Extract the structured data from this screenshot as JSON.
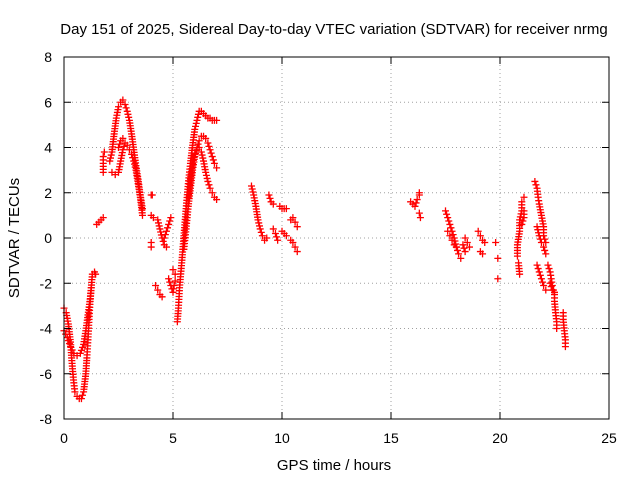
{
  "chart_data": {
    "type": "scatter",
    "title": "Day 151 of 2025, Sidereal Day-to-day VTEC variation (SDTVAR) for receiver nrmg",
    "xlabel": "GPS time / hours",
    "ylabel": "SDTVAR / TECUs",
    "xlim": [
      0,
      25
    ],
    "ylim": [
      -8,
      8
    ],
    "xticks": [
      0,
      5,
      10,
      15,
      20,
      25
    ],
    "yticks": [
      -8,
      -6,
      -4,
      -2,
      0,
      2,
      4,
      6,
      8
    ],
    "grid": true,
    "marker": "+",
    "series": [
      {
        "name": "SDTVAR",
        "color": "#ff0000",
        "segments": [
          [
            [
              0.0,
              -3.1
            ],
            [
              0.1,
              -3.3
            ],
            [
              0.2,
              -3.8
            ],
            [
              0.3,
              -4.6
            ],
            [
              0.35,
              -5.3
            ],
            [
              0.4,
              -5.9
            ],
            [
              0.45,
              -6.4
            ],
            [
              0.5,
              -6.8
            ],
            [
              0.6,
              -7.0
            ],
            [
              0.7,
              -7.1
            ],
            [
              0.8,
              -7.1
            ],
            [
              0.9,
              -6.8
            ],
            [
              1.0,
              -6.0
            ],
            [
              1.05,
              -5.3
            ],
            [
              1.1,
              -4.5
            ],
            [
              1.15,
              -3.6
            ],
            [
              1.2,
              -2.8
            ],
            [
              1.25,
              -2.2
            ],
            [
              1.3,
              -1.6
            ]
          ],
          [
            [
              0.0,
              -4.1
            ],
            [
              0.15,
              -4.4
            ],
            [
              0.3,
              -4.8
            ],
            [
              0.45,
              -5.1
            ],
            [
              0.6,
              -5.2
            ],
            [
              0.75,
              -5.1
            ],
            [
              0.9,
              -4.7
            ],
            [
              1.0,
              -4.1
            ],
            [
              1.1,
              -3.4
            ],
            [
              1.2,
              -2.7
            ],
            [
              1.25,
              -2.2
            ]
          ],
          [
            [
              1.4,
              -1.5
            ],
            [
              1.45,
              -1.6
            ]
          ],
          [
            [
              1.5,
              0.6
            ],
            [
              1.6,
              0.7
            ],
            [
              1.7,
              0.8
            ],
            [
              1.8,
              0.9
            ]
          ],
          [
            [
              1.8,
              2.9
            ],
            [
              1.8,
              3.3
            ],
            [
              1.8,
              3.6
            ],
            [
              1.85,
              3.8
            ]
          ],
          [
            [
              2.1,
              3.4
            ],
            [
              2.2,
              3.8
            ],
            [
              2.3,
              4.6
            ],
            [
              2.4,
              5.3
            ],
            [
              2.5,
              5.8
            ],
            [
              2.6,
              6.0
            ],
            [
              2.7,
              6.1
            ],
            [
              2.8,
              5.9
            ],
            [
              2.9,
              5.6
            ],
            [
              3.0,
              5.2
            ],
            [
              3.1,
              4.6
            ],
            [
              3.2,
              3.9
            ],
            [
              3.3,
              3.2
            ],
            [
              3.4,
              2.6
            ],
            [
              3.5,
              1.9
            ],
            [
              3.6,
              1.3
            ]
          ],
          [
            [
              2.2,
              2.9
            ],
            [
              2.35,
              2.8
            ],
            [
              2.5,
              2.9
            ],
            [
              2.6,
              3.4
            ],
            [
              2.7,
              3.9
            ],
            [
              2.8,
              4.2
            ],
            [
              2.9,
              4.1
            ],
            [
              3.0,
              3.9
            ],
            [
              3.1,
              3.7
            ],
            [
              3.2,
              3.4
            ],
            [
              3.3,
              3.0
            ],
            [
              3.4,
              2.4
            ],
            [
              3.5,
              1.8
            ],
            [
              3.6,
              1.0
            ]
          ],
          [
            [
              2.5,
              4.0
            ],
            [
              2.6,
              4.3
            ],
            [
              2.7,
              4.4
            ]
          ],
          [
            [
              4.0,
              1.9
            ],
            [
              4.05,
              1.9
            ]
          ],
          [
            [
              4.0,
              1.0
            ],
            [
              4.1,
              0.9
            ]
          ],
          [
            [
              4.3,
              0.8
            ],
            [
              4.4,
              0.4
            ],
            [
              4.5,
              0.0
            ],
            [
              4.6,
              -0.3
            ],
            [
              4.7,
              -0.4
            ]
          ],
          [
            [
              4.2,
              -2.1
            ],
            [
              4.3,
              -2.3
            ],
            [
              4.4,
              -2.5
            ],
            [
              4.5,
              -2.6
            ]
          ],
          [
            [
              4.8,
              -1.8
            ],
            [
              4.9,
              -2.1
            ],
            [
              5.0,
              -2.4
            ],
            [
              5.05,
              -2.1
            ],
            [
              5.1,
              -1.9
            ]
          ],
          [
            [
              4.6,
              0.0
            ],
            [
              4.7,
              0.3
            ],
            [
              4.8,
              0.6
            ],
            [
              4.9,
              0.9
            ]
          ],
          [
            [
              4.0,
              -0.2
            ],
            [
              4.0,
              -0.4
            ]
          ],
          [
            [
              5.0,
              -1.4
            ],
            [
              5.1,
              -1.6
            ]
          ],
          [
            [
              5.2,
              -3.7
            ],
            [
              5.25,
              -3.1
            ],
            [
              5.3,
              -2.2
            ],
            [
              5.4,
              -1.1
            ],
            [
              5.5,
              0.1
            ],
            [
              5.6,
              1.3
            ],
            [
              5.7,
              2.4
            ],
            [
              5.8,
              3.3
            ],
            [
              5.9,
              4.1
            ],
            [
              6.0,
              4.8
            ],
            [
              6.1,
              5.2
            ],
            [
              6.2,
              5.6
            ],
            [
              6.3,
              5.6
            ],
            [
              6.4,
              5.5
            ],
            [
              6.5,
              5.4
            ],
            [
              6.6,
              5.3
            ],
            [
              6.7,
              5.3
            ],
            [
              6.8,
              5.2
            ],
            [
              6.9,
              5.2
            ],
            [
              7.0,
              5.2
            ]
          ],
          [
            [
              5.5,
              -0.5
            ],
            [
              5.6,
              0.4
            ],
            [
              5.7,
              1.4
            ],
            [
              5.8,
              2.2
            ],
            [
              5.9,
              3.0
            ],
            [
              6.0,
              3.6
            ],
            [
              6.1,
              4.0
            ],
            [
              6.2,
              4.3
            ],
            [
              6.3,
              4.5
            ],
            [
              6.4,
              4.5
            ],
            [
              6.5,
              4.4
            ],
            [
              6.6,
              4.2
            ],
            [
              6.7,
              3.9
            ],
            [
              6.8,
              3.6
            ],
            [
              6.9,
              3.3
            ],
            [
              7.0,
              3.1
            ]
          ],
          [
            [
              5.7,
              1.8
            ],
            [
              5.8,
              2.6
            ],
            [
              5.9,
              3.3
            ],
            [
              6.0,
              3.7
            ],
            [
              6.1,
              3.9
            ],
            [
              6.2,
              4.0
            ],
            [
              6.3,
              3.8
            ],
            [
              6.4,
              3.4
            ],
            [
              6.5,
              2.9
            ],
            [
              6.6,
              2.5
            ],
            [
              6.7,
              2.2
            ],
            [
              6.8,
              2.0
            ],
            [
              6.9,
              1.8
            ],
            [
              7.0,
              1.7
            ]
          ],
          [
            [
              8.6,
              2.3
            ],
            [
              8.7,
              1.9
            ],
            [
              8.8,
              1.4
            ],
            [
              8.9,
              0.8
            ],
            [
              9.0,
              0.4
            ],
            [
              9.1,
              0.1
            ],
            [
              9.2,
              -0.1
            ],
            [
              9.3,
              0.0
            ]
          ],
          [
            [
              9.4,
              1.9
            ],
            [
              9.5,
              1.6
            ],
            [
              9.6,
              1.5
            ]
          ],
          [
            [
              9.6,
              0.4
            ],
            [
              9.7,
              0.2
            ],
            [
              9.8,
              -0.1
            ]
          ],
          [
            [
              9.9,
              1.4
            ],
            [
              10.0,
              1.3
            ],
            [
              10.1,
              1.3
            ],
            [
              10.2,
              1.3
            ]
          ],
          [
            [
              10.0,
              0.3
            ],
            [
              10.1,
              0.2
            ],
            [
              10.2,
              0.1
            ]
          ],
          [
            [
              10.4,
              -0.1
            ],
            [
              10.5,
              -0.2
            ],
            [
              10.6,
              -0.4
            ],
            [
              10.7,
              -0.6
            ]
          ],
          [
            [
              10.4,
              0.8
            ],
            [
              10.5,
              0.9
            ],
            [
              10.6,
              0.7
            ],
            [
              10.7,
              0.5
            ]
          ],
          [
            [
              15.9,
              1.6
            ],
            [
              16.0,
              1.5
            ],
            [
              16.1,
              1.4
            ],
            [
              16.2,
              1.7
            ],
            [
              16.3,
              1.9
            ],
            [
              16.3,
              2.0
            ]
          ],
          [
            [
              16.3,
              1.1
            ],
            [
              16.35,
              0.9
            ]
          ],
          [
            [
              17.5,
              1.2
            ],
            [
              17.6,
              0.9
            ],
            [
              17.7,
              0.6
            ],
            [
              17.8,
              0.3
            ],
            [
              17.9,
              0.0
            ],
            [
              18.0,
              -0.4
            ],
            [
              18.1,
              -0.7
            ],
            [
              18.2,
              -0.9
            ]
          ],
          [
            [
              17.6,
              0.3
            ],
            [
              17.7,
              0.1
            ],
            [
              17.8,
              -0.1
            ],
            [
              17.9,
              -0.3
            ],
            [
              18.0,
              -0.4
            ]
          ],
          [
            [
              18.4,
              0.0
            ],
            [
              18.5,
              -0.2
            ],
            [
              18.6,
              -0.4
            ]
          ],
          [
            [
              18.3,
              -0.3
            ],
            [
              18.4,
              -0.6
            ]
          ],
          [
            [
              19.0,
              0.3
            ],
            [
              19.1,
              0.1
            ],
            [
              19.2,
              -0.1
            ],
            [
              19.3,
              -0.2
            ]
          ],
          [
            [
              19.1,
              -0.6
            ],
            [
              19.2,
              -0.7
            ]
          ],
          [
            [
              19.8,
              -0.2
            ]
          ],
          [
            [
              19.9,
              -0.9
            ]
          ],
          [
            [
              19.9,
              -1.8
            ]
          ],
          [
            [
              20.8,
              -0.8
            ],
            [
              20.8,
              -0.3
            ],
            [
              20.9,
              0.3
            ],
            [
              20.9,
              0.8
            ],
            [
              21.0,
              1.2
            ],
            [
              21.0,
              1.6
            ],
            [
              21.1,
              1.8
            ]
          ],
          [
            [
              20.85,
              -1.1
            ],
            [
              20.9,
              -1.6
            ]
          ],
          [
            [
              21.0,
              0.6
            ],
            [
              21.1,
              0.9
            ],
            [
              21.1,
              1.2
            ]
          ],
          [
            [
              21.6,
              2.5
            ],
            [
              21.7,
              2.2
            ],
            [
              21.75,
              1.8
            ],
            [
              21.8,
              1.5
            ],
            [
              21.9,
              1.0
            ],
            [
              22.0,
              0.5
            ],
            [
              22.0,
              0.1
            ],
            [
              22.1,
              -0.2
            ]
          ],
          [
            [
              21.7,
              0.5
            ],
            [
              21.8,
              0.1
            ],
            [
              21.9,
              -0.2
            ],
            [
              22.0,
              -0.4
            ],
            [
              22.1,
              -0.7
            ]
          ],
          [
            [
              21.7,
              -1.2
            ],
            [
              21.8,
              -1.5
            ],
            [
              21.9,
              -1.8
            ],
            [
              22.0,
              -2.1
            ],
            [
              22.1,
              -2.3
            ]
          ],
          [
            [
              22.2,
              -1.2
            ],
            [
              22.3,
              -1.5
            ],
            [
              22.35,
              -1.8
            ],
            [
              22.4,
              -2.1
            ],
            [
              22.45,
              -2.3
            ],
            [
              22.5,
              -2.5
            ],
            [
              22.5,
              -2.8
            ],
            [
              22.55,
              -3.3
            ],
            [
              22.6,
              -3.7
            ],
            [
              22.6,
              -4.0
            ]
          ],
          [
            [
              22.3,
              -2.0
            ],
            [
              22.4,
              -2.3
            ],
            [
              22.5,
              -2.4
            ]
          ],
          [
            [
              22.9,
              -3.3
            ],
            [
              22.9,
              -3.6
            ],
            [
              22.95,
              -4.1
            ],
            [
              23.0,
              -4.5
            ],
            [
              23.0,
              -4.8
            ]
          ]
        ]
      }
    ]
  }
}
